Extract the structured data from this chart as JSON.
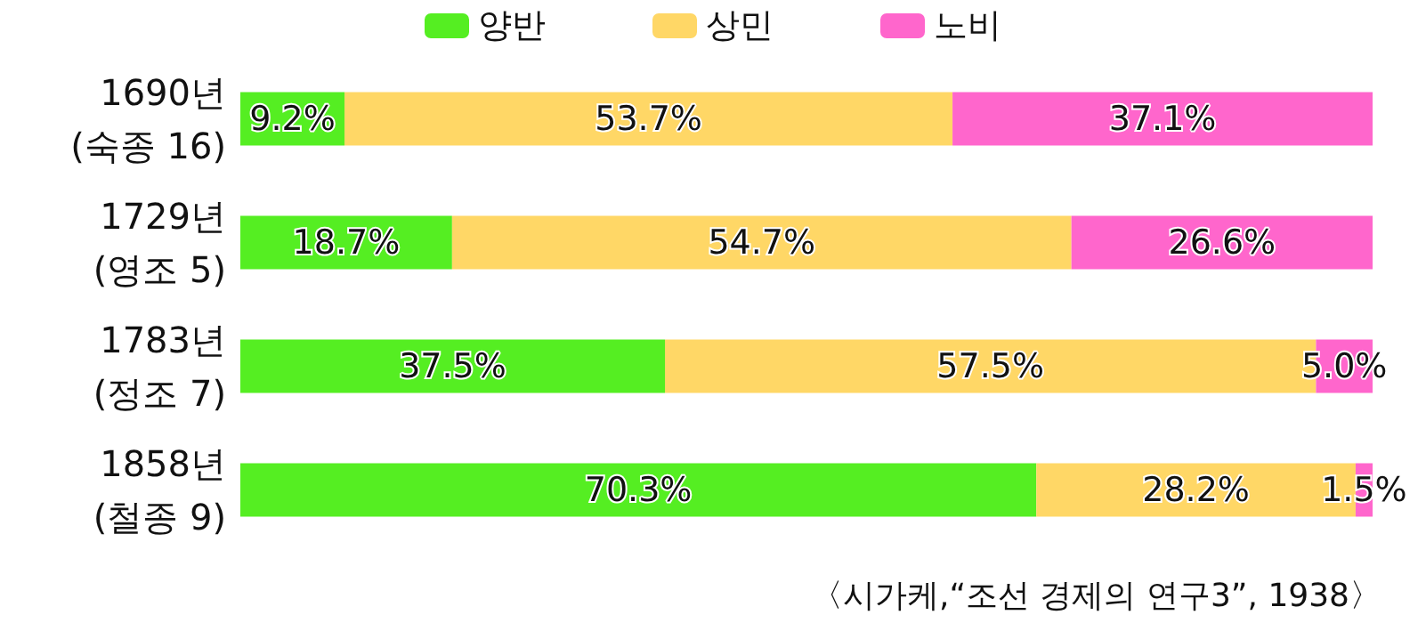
{
  "chart_data": {
    "type": "bar",
    "orientation": "horizontal",
    "stacked": true,
    "legend": "top",
    "tick_labels": "y",
    "categories": [
      "1690년\n(숙종 16)",
      "1729년\n(영조 5)",
      "1783년\n(정조 7)",
      "1858년\n(철종 9)"
    ],
    "series": [
      {
        "name": "양반",
        "color": "#55ee22",
        "values": [
          9.2,
          18.7,
          37.5,
          70.3
        ],
        "value_labels": [
          "9.2%",
          "18.7%",
          "37.5%",
          "70.3%"
        ]
      },
      {
        "name": "상민",
        "color": "#ffd766",
        "values": [
          53.7,
          54.7,
          57.5,
          28.2
        ],
        "value_labels": [
          "53.7%",
          "54.7%",
          "57.5%",
          "28.2%"
        ]
      },
      {
        "name": "노비",
        "color": "#ff66cc",
        "values": [
          37.1,
          26.6,
          5.0,
          1.5
        ],
        "value_labels": [
          "37.1%",
          "26.6%",
          "5.0%",
          "1.5%"
        ]
      }
    ],
    "annotations": [
      "〈시가케,“조선 경제의 연구3”, 1938〉"
    ]
  }
}
